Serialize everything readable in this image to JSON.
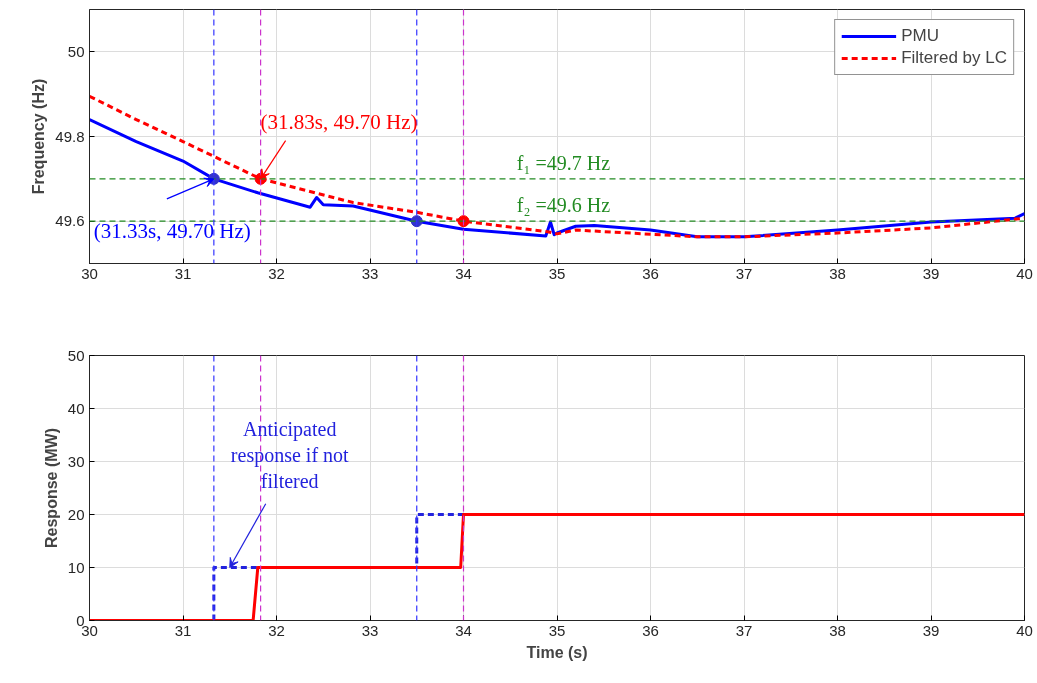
{
  "chart_data": [
    {
      "type": "line",
      "ylabel": "Frequency (Hz)",
      "xlim": [
        30,
        40
      ],
      "xticks": [
        30,
        31,
        32,
        33,
        34,
        35,
        36,
        37,
        38,
        39,
        40
      ],
      "ylim": [
        49.5,
        50.1
      ],
      "yticks": [
        49.6,
        49.8,
        50
      ],
      "grid": true,
      "legend": "top right",
      "series": [
        {
          "name": "PMU",
          "color": "#0000ff",
          "line_style": "solid",
          "x": [
            30,
            30.5,
            31,
            31.33,
            31.8,
            32.36,
            32.43,
            32.5,
            32.82,
            33.5,
            34.0,
            34.88,
            34.93,
            34.97,
            35.0,
            35.2,
            35.4,
            36.0,
            36.5,
            37.0,
            38.0,
            39.0,
            39.9,
            40
          ],
          "values": [
            49.84,
            49.788,
            49.742,
            49.7,
            49.667,
            49.633,
            49.656,
            49.639,
            49.636,
            49.6,
            49.581,
            49.565,
            49.598,
            49.568,
            49.572,
            49.588,
            49.59,
            49.579,
            49.563,
            49.563,
            49.579,
            49.598,
            49.607,
            49.618
          ]
        },
        {
          "name": "Filtered by LC",
          "color": "#ff0000",
          "line_style": "dashed",
          "x": [
            30,
            30.5,
            31,
            31.83,
            32.82,
            33.5,
            34.0,
            34.9,
            35.0,
            35.2,
            36.5,
            37.0,
            38.0,
            39.0,
            40
          ],
          "values": [
            49.895,
            49.84,
            49.788,
            49.7,
            49.644,
            49.621,
            49.6,
            49.575,
            49.57,
            49.579,
            49.563,
            49.563,
            49.572,
            49.584,
            49.607
          ]
        },
        {
          "type": "scatter",
          "color": "#3333cc",
          "marker": "circle",
          "x": [
            31.33,
            33.5
          ],
          "values": [
            49.7,
            49.6
          ]
        },
        {
          "type": "scatter",
          "color": "#ff0000",
          "marker": "circle",
          "x": [
            31.83,
            34.0
          ],
          "values": [
            49.7,
            49.6
          ]
        }
      ],
      "ref_lines": [
        {
          "axis": "y",
          "value": 49.7,
          "label": "f₁ =49.7 Hz",
          "color": "#228b22",
          "line_style": "dashed"
        },
        {
          "axis": "y",
          "value": 49.6,
          "label": "f₂ =49.6 Hz",
          "color": "#228b22",
          "line_style": "dashed"
        },
        {
          "axis": "x",
          "value": 31.33,
          "color": "#3333ff",
          "line_style": "dashed"
        },
        {
          "axis": "x",
          "value": 33.5,
          "color": "#3333ff",
          "line_style": "dashed"
        },
        {
          "axis": "x",
          "value": 31.83,
          "color": "#cc33cc",
          "line_style": "dashed"
        },
        {
          "axis": "x",
          "value": 34.0,
          "color": "#cc33cc",
          "line_style": "dashed"
        }
      ],
      "annotations": [
        {
          "text": "(31.83s, 49.70 Hz)",
          "x": 31.83,
          "y": 49.7
        },
        {
          "text": "(31.33s, 49.70 Hz)",
          "x": 31.33,
          "y": 49.7
        }
      ]
    },
    {
      "type": "step",
      "xlabel": "Time (s)",
      "ylabel": "Response (MW)",
      "xlim": [
        30,
        40
      ],
      "xticks": [
        30,
        31,
        32,
        33,
        34,
        35,
        36,
        37,
        38,
        39,
        40
      ],
      "ylim": [
        0,
        50
      ],
      "yticks": [
        0,
        10,
        20,
        30,
        40,
        50
      ],
      "grid": true,
      "series": [
        {
          "type": "line",
          "color": "#2222dd",
          "line_style": "dashed",
          "x": [
            31.33,
            31.33,
            33.5,
            33.5,
            34.0
          ],
          "values": [
            0,
            10,
            10,
            20,
            20
          ]
        },
        {
          "type": "line",
          "color": "#ff0000",
          "line_style": "solid",
          "x": [
            30,
            31.75,
            31.8,
            33.97,
            34.0,
            40
          ],
          "values": [
            0,
            0,
            10,
            10,
            20,
            20
          ]
        }
      ],
      "ref_lines": [
        {
          "axis": "x",
          "value": 31.33,
          "color": "#3333ff",
          "line_style": "dashed"
        },
        {
          "axis": "x",
          "value": 33.5,
          "color": "#3333ff",
          "line_style": "dashed"
        },
        {
          "axis": "x",
          "value": 31.83,
          "color": "#cc33cc",
          "line_style": "dashed"
        },
        {
          "axis": "x",
          "value": 34.0,
          "color": "#cc33cc",
          "line_style": "dashed"
        }
      ],
      "annotations": [
        {
          "text": "Anticipated response if not filtered",
          "x": 31.5,
          "y": 10
        }
      ]
    }
  ]
}
